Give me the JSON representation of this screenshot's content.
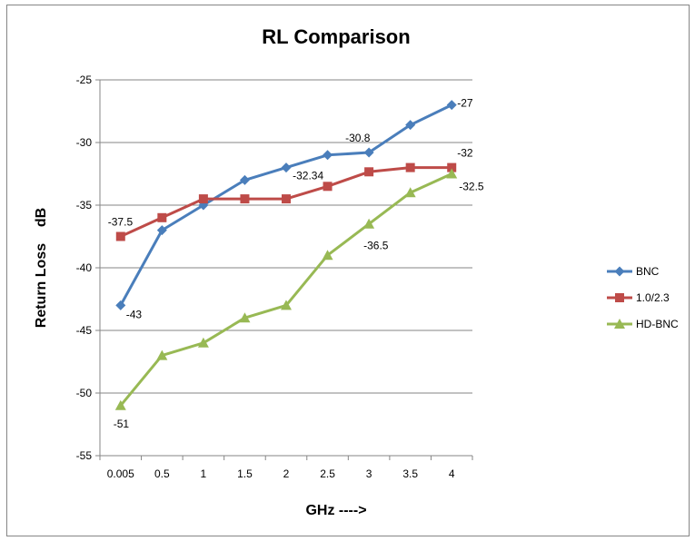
{
  "chart_data": {
    "type": "line",
    "title": "RL Comparison",
    "xlabel": "GHz ---->",
    "ylabel": "Return Loss    dB",
    "categories": [
      "0.005",
      "0.5",
      "1",
      "1.5",
      "2",
      "2.5",
      "3",
      "3.5",
      "4"
    ],
    "ylim": [
      -55,
      -25
    ],
    "yticks": [
      -25,
      -30,
      -35,
      -40,
      -45,
      -50,
      -55
    ],
    "grid": "horizontal",
    "legend_position": "right",
    "series": [
      {
        "name": "BNC",
        "color": "#4a7ebb",
        "marker": "diamond",
        "values": [
          -43,
          -37,
          -35,
          -33,
          -32,
          -31,
          -30.8,
          -28.6,
          -27
        ],
        "data_labels": [
          {
            "index": 0,
            "text": "-43"
          },
          {
            "index": 6,
            "text": "-30.8"
          },
          {
            "index": 8,
            "text": "-27"
          }
        ]
      },
      {
        "name": "1.0/2.3",
        "color": "#be4b48",
        "marker": "square",
        "values": [
          -37.5,
          -36,
          -34.5,
          -34.5,
          -34.5,
          -33.5,
          -32.34,
          -32,
          -32
        ],
        "data_labels": [
          {
            "index": 0,
            "text": "-37.5"
          },
          {
            "index": 6,
            "text": "-32.34"
          },
          {
            "index": 8,
            "text": "-32"
          }
        ]
      },
      {
        "name": "HD-BNC",
        "color": "#98b954",
        "marker": "triangle",
        "values": [
          -51,
          -47,
          -46,
          -44,
          -43,
          -39,
          -36.5,
          -34,
          -32.5
        ],
        "data_labels": [
          {
            "index": 0,
            "text": "-51"
          },
          {
            "index": 6,
            "text": "-36.5"
          },
          {
            "index": 8,
            "text": "-32.5"
          }
        ]
      }
    ]
  }
}
